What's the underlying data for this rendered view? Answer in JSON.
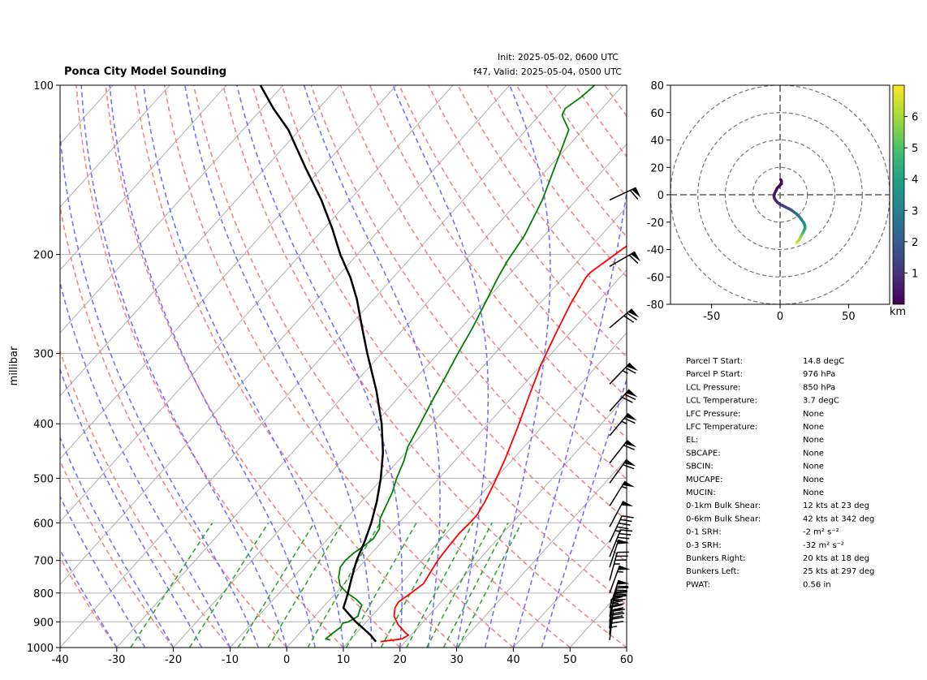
{
  "header": {
    "title": "Ponca City Model Sounding",
    "init": "Init: 2025-05-02, 0600 UTC",
    "valid": "f47, Valid: 2025-05-04, 0500 UTC"
  },
  "chart_data": [
    {
      "type": "line",
      "kind": "skew-t log-p",
      "ylabel": "millibar",
      "xlabel": "",
      "xlim": [
        -40,
        60
      ],
      "ylim": [
        1000,
        100
      ],
      "y_scale": "log",
      "grid": true,
      "x_ticks": [
        -40,
        -30,
        -20,
        -10,
        0,
        10,
        20,
        30,
        40,
        50,
        60
      ],
      "y_ticks": [
        1000,
        900,
        800,
        700,
        600,
        500,
        400,
        300,
        200,
        100
      ],
      "colors": {
        "temperature": "#ff0000",
        "dewpoint": "#008000",
        "parcel": "#000000",
        "dry_adiabats": "#f08080",
        "moist_adiabats": "#6b6bff",
        "mixing_ratio": "#2ca02c"
      },
      "series": [
        {
          "key": "temperature",
          "points": [
            [
              15.6,
              976
            ],
            [
              19.0,
              965
            ],
            [
              19.5,
              950
            ],
            [
              18.5,
              940
            ],
            [
              16.0,
              910
            ],
            [
              14.0,
              880
            ],
            [
              12.8,
              850
            ],
            [
              12.5,
              830
            ],
            [
              13.3,
              800
            ],
            [
              14.0,
              770
            ],
            [
              13.5,
              740
            ],
            [
              12.8,
              700
            ],
            [
              12.5,
              660
            ],
            [
              12.3,
              625
            ],
            [
              12.5,
              600
            ],
            [
              12.5,
              580
            ],
            [
              11.8,
              550
            ],
            [
              10.5,
              510
            ],
            [
              8.5,
              460
            ],
            [
              6.0,
              410
            ],
            [
              3.0,
              360
            ],
            [
              0.0,
              315
            ],
            [
              -2.5,
              275
            ],
            [
              -4.5,
              245
            ],
            [
              -6.0,
              220
            ],
            [
              -6.0,
              215
            ],
            [
              -4.0,
              195
            ],
            [
              -1.0,
              175
            ],
            [
              4.0,
              155
            ],
            [
              9.0,
              138
            ],
            [
              15.0,
              122
            ],
            [
              20.0,
              110
            ],
            [
              24.0,
              100
            ]
          ]
        },
        {
          "key": "dewpoint",
          "points": [
            [
              6.5,
              970
            ],
            [
              5.5,
              965
            ],
            [
              5.8,
              945
            ],
            [
              6.3,
              920
            ],
            [
              6.0,
              905
            ],
            [
              6.8,
              900
            ],
            [
              7.6,
              880
            ],
            [
              7.0,
              860
            ],
            [
              6.5,
              840
            ],
            [
              4.5,
              820
            ],
            [
              2.0,
              800
            ],
            [
              -0.5,
              775
            ],
            [
              -2.0,
              750
            ],
            [
              -3.3,
              720
            ],
            [
              -3.5,
              700
            ],
            [
              -3.2,
              680
            ],
            [
              -2.5,
              660
            ],
            [
              -2.0,
              640
            ],
            [
              -2.5,
              615
            ],
            [
              -4.0,
              590
            ],
            [
              -5.0,
              560
            ],
            [
              -6.0,
              530
            ],
            [
              -7.5,
              500
            ],
            [
              -9.0,
              465
            ],
            [
              -10.5,
              440
            ],
            [
              -11.8,
              405
            ],
            [
              -13.5,
              365
            ],
            [
              -15.0,
              330
            ],
            [
              -16.5,
              300
            ],
            [
              -18.0,
              270
            ],
            [
              -20.0,
              240
            ],
            [
              -21.5,
              220
            ],
            [
              -22.5,
              205
            ],
            [
              -23.5,
              185
            ],
            [
              -26.0,
              160
            ],
            [
              -29.0,
              140
            ],
            [
              -32.5,
              120
            ],
            [
              -35.0,
              115
            ],
            [
              -36.0,
              113
            ],
            [
              -36.5,
              110
            ],
            [
              -35.5,
              105
            ],
            [
              -35.0,
              100
            ]
          ]
        },
        {
          "key": "parcel",
          "points": [
            [
              14.8,
              976
            ],
            [
              12.8,
              950
            ],
            [
              10.5,
              925
            ],
            [
              8.1,
              900
            ],
            [
              5.9,
              875
            ],
            [
              3.7,
              850
            ],
            [
              2.8,
              820
            ],
            [
              1.8,
              790
            ],
            [
              0.7,
              760
            ],
            [
              -0.4,
              730
            ],
            [
              -1.5,
              700
            ],
            [
              -3.0,
              650
            ],
            [
              -4.9,
              600
            ],
            [
              -7.3,
              550
            ],
            [
              -10.3,
              500
            ],
            [
              -14.0,
              450
            ],
            [
              -18.8,
              400
            ],
            [
              -24.9,
              350
            ],
            [
              -32.5,
              300
            ],
            [
              -37.5,
              270
            ],
            [
              -43.0,
              240
            ],
            [
              -47.5,
              220
            ],
            [
              -53.0,
              200
            ],
            [
              -58.5,
              180
            ],
            [
              -65.0,
              160
            ],
            [
              -73.0,
              140
            ],
            [
              -82.0,
              120
            ],
            [
              -88.0,
              110
            ],
            [
              -94.0,
              100
            ]
          ]
        }
      ]
    },
    {
      "type": "scatter",
      "kind": "hodograph",
      "xlim": [
        -80,
        80
      ],
      "ylim": [
        -80,
        80
      ],
      "x_ticks": [
        -50,
        0,
        50
      ],
      "y_ticks": [
        -80,
        -60,
        -40,
        -20,
        0,
        20,
        40,
        60,
        80
      ],
      "colorbar": {
        "label": "km",
        "ticks": [
          1,
          2,
          3,
          4,
          5,
          6
        ],
        "range": [
          0,
          7
        ]
      },
      "points": [
        [
          12,
          -35,
          6.5
        ],
        [
          13,
          -34,
          6.3
        ],
        [
          14,
          -33,
          6.1
        ],
        [
          15,
          -31,
          5.9
        ],
        [
          15.5,
          -30,
          5.6
        ],
        [
          16,
          -29,
          5.3
        ],
        [
          16.5,
          -28,
          5.0
        ],
        [
          17,
          -27,
          4.7
        ],
        [
          17.5,
          -26,
          4.4
        ],
        [
          18,
          -25,
          4.1
        ],
        [
          18.2,
          -24,
          3.8
        ],
        [
          18,
          -22,
          3.5
        ],
        [
          17,
          -20,
          3.2
        ],
        [
          15.5,
          -18,
          2.9
        ],
        [
          14,
          -16,
          2.6
        ],
        [
          12,
          -14,
          2.3
        ],
        [
          10,
          -12.5,
          2.0
        ],
        [
          8,
          -11,
          1.7
        ],
        [
          6,
          -10,
          1.5
        ],
        [
          4,
          -9,
          1.3
        ],
        [
          2,
          -8,
          1.1
        ],
        [
          0,
          -7,
          0.9
        ],
        [
          -2,
          -5.5,
          0.7
        ],
        [
          -4,
          -3,
          0.5
        ],
        [
          -4.5,
          -1,
          0.4
        ],
        [
          -4,
          1,
          0.3
        ],
        [
          -3,
          3,
          0.25
        ],
        [
          -2,
          5,
          0.2
        ],
        [
          -1,
          6,
          0.15
        ],
        [
          0,
          7,
          0.1
        ],
        [
          1,
          8,
          0.05
        ],
        [
          1,
          10,
          0.0
        ],
        [
          0.5,
          11,
          0.0
        ]
      ]
    }
  ],
  "winds": [
    [
      7,
      45,
      970
    ],
    [
      5,
      42,
      950
    ],
    [
      3,
      40,
      925
    ],
    [
      10,
      25,
      900
    ],
    [
      14,
      45,
      880
    ],
    [
      18,
      80,
      850
    ],
    [
      20,
      55,
      800
    ],
    [
      15,
      36,
      760
    ],
    [
      18,
      48,
      720
    ],
    [
      22,
      42,
      690
    ],
    [
      25,
      45,
      650
    ],
    [
      28,
      50,
      610
    ],
    [
      32,
      55,
      560
    ],
    [
      36,
      60,
      510
    ],
    [
      38,
      62,
      470
    ],
    [
      40,
      64,
      420
    ],
    [
      42,
      68,
      380
    ],
    [
      44,
      66,
      340
    ],
    [
      50,
      68,
      270
    ],
    [
      60,
      62,
      210
    ],
    [
      65,
      58,
      160
    ]
  ],
  "info": {
    "rows": [
      {
        "label": "Parcel T Start:",
        "value": "14.8 degC"
      },
      {
        "label": "Parcel P Start:",
        "value": "976 hPa"
      },
      {
        "label": "LCL Pressure:",
        "value": "850 hPa"
      },
      {
        "label": "LCL Temperature:",
        "value": "3.7 degC"
      },
      {
        "label": "LFC Pressure:",
        "value": "None"
      },
      {
        "label": "LFC Temperature:",
        "value": "None"
      },
      {
        "label": "EL:",
        "value": "None"
      },
      {
        "label": "SBCAPE:",
        "value": "None"
      },
      {
        "label": "SBCIN:",
        "value": "None"
      },
      {
        "label": "MUCAPE:",
        "value": "None"
      },
      {
        "label": "MUCIN:",
        "value": "None"
      },
      {
        "label": "0-1km Bulk Shear:",
        "value": "12 kts at 23 deg"
      },
      {
        "label": "0-6km Bulk Shear:",
        "value": "42 kts at 342 deg"
      },
      {
        "label": "0-1 SRH:",
        "value": "-2 m² s⁻²"
      },
      {
        "label": "0-3 SRH:",
        "value": "-32 m² s⁻²"
      },
      {
        "label": "Bunkers Right:",
        "value": "20 kts at 18 deg"
      },
      {
        "label": "Bunkers Left:",
        "value": "25 kts at 297 deg"
      },
      {
        "label": "PWAT:",
        "value": "0.56 in"
      }
    ]
  }
}
